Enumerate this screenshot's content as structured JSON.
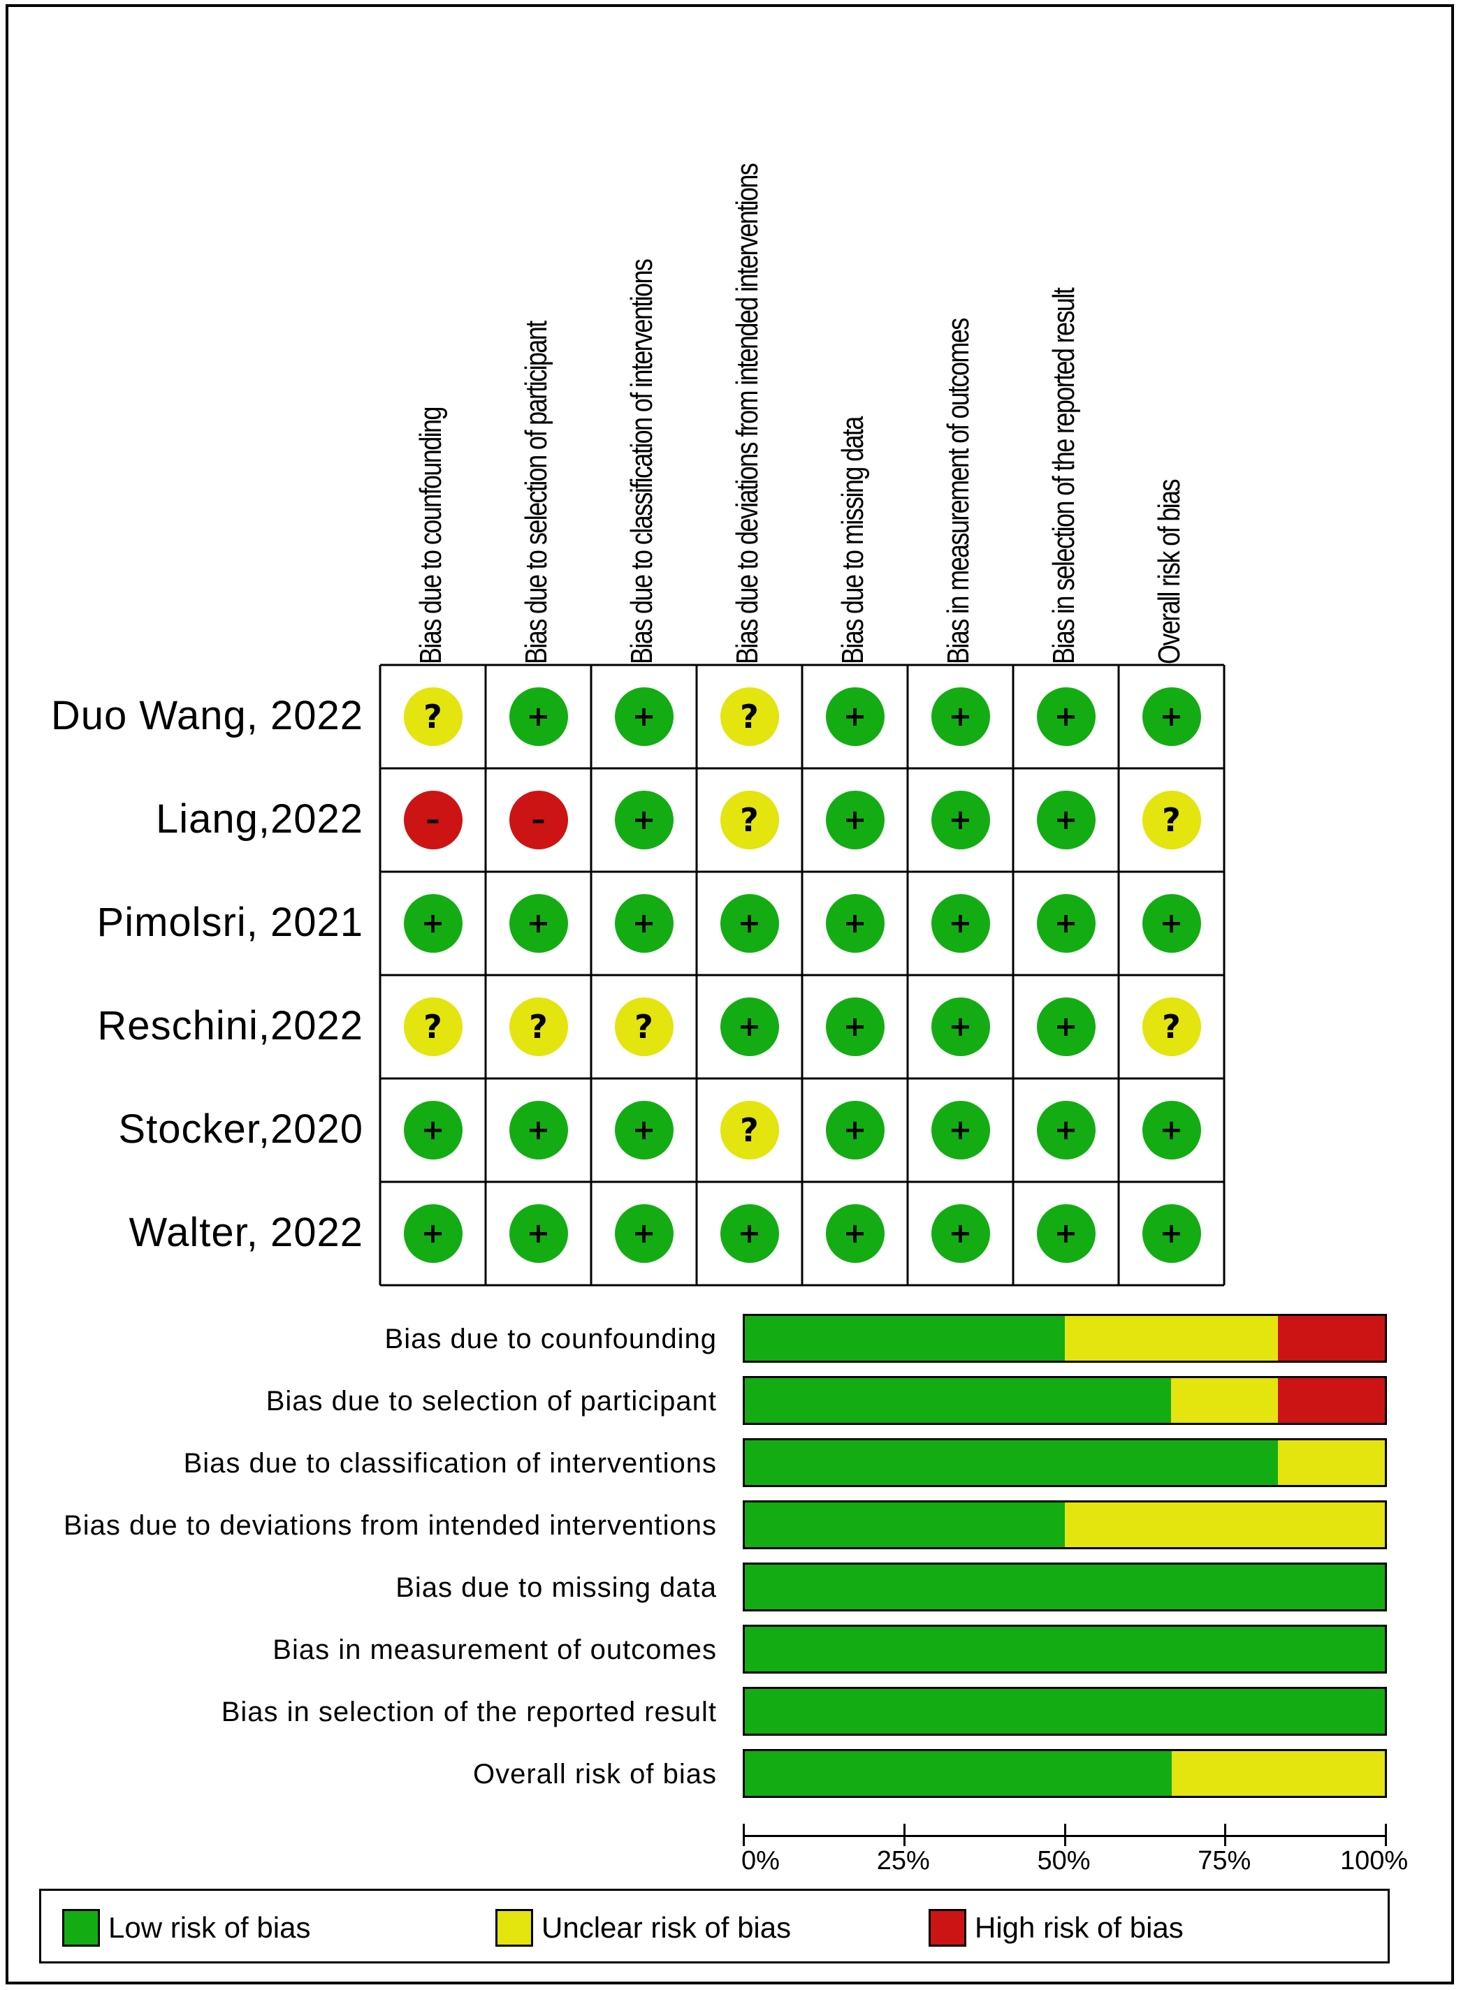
{
  "chart_data": [
    {
      "type": "table",
      "columns": [
        "Bias due to counfounding",
        "Bias due to selection of participant",
        "Bias due to classification of interventions",
        "Bias due to deviations from intended interventions",
        "Bias due to missing data",
        "Bias in measurement of outcomes",
        "Bias in selection of the reported result",
        "Overall risk of bias"
      ],
      "rows": [
        {
          "study": "Duo Wang, 2022",
          "judgements": [
            "unclear",
            "low",
            "low",
            "unclear",
            "low",
            "low",
            "low",
            "low"
          ]
        },
        {
          "study": "Liang,2022",
          "judgements": [
            "high",
            "high",
            "low",
            "unclear",
            "low",
            "low",
            "low",
            "unclear"
          ]
        },
        {
          "study": "Pimolsri, 2021",
          "judgements": [
            "low",
            "low",
            "low",
            "low",
            "low",
            "low",
            "low",
            "low"
          ]
        },
        {
          "study": "Reschini,2022",
          "judgements": [
            "unclear",
            "unclear",
            "unclear",
            "low",
            "low",
            "low",
            "low",
            "unclear"
          ]
        },
        {
          "study": "Stocker,2020",
          "judgements": [
            "low",
            "low",
            "low",
            "unclear",
            "low",
            "low",
            "low",
            "low"
          ]
        },
        {
          "study": "Walter, 2022",
          "judgements": [
            "low",
            "low",
            "low",
            "low",
            "low",
            "low",
            "low",
            "low"
          ]
        }
      ]
    },
    {
      "type": "bar",
      "orientation": "horizontal",
      "stacked": true,
      "categories": [
        "Bias due to counfounding",
        "Bias due to selection of participant",
        "Bias due to classification of interventions",
        "Bias due to deviations from intended interventions",
        "Bias due to missing data",
        "Bias in measurement of outcomes",
        "Bias in selection of the reported result",
        "Overall risk of bias"
      ],
      "series": [
        {
          "name": "Low risk of bias",
          "color": "#13ad13",
          "values": [
            50,
            66.7,
            83.3,
            50,
            100,
            100,
            100,
            66.7
          ]
        },
        {
          "name": "Unclear risk of bias",
          "color": "#e4e40e",
          "values": [
            33.3,
            16.7,
            16.7,
            50,
            0,
            0,
            0,
            33.3
          ]
        },
        {
          "name": "High risk of bias",
          "color": "#cc1414",
          "values": [
            16.7,
            16.7,
            0,
            0,
            0,
            0,
            0,
            0
          ]
        }
      ],
      "xlim": [
        0,
        100
      ],
      "ticks": [
        "0%",
        "25%",
        "50%",
        "75%",
        "100%"
      ]
    }
  ],
  "legend": [
    {
      "label": "Low risk of bias",
      "color": "#13ad13"
    },
    {
      "label": "Unclear risk of bias",
      "color": "#e4e40e"
    },
    {
      "label": "High risk of bias",
      "color": "#cc1414"
    }
  ]
}
